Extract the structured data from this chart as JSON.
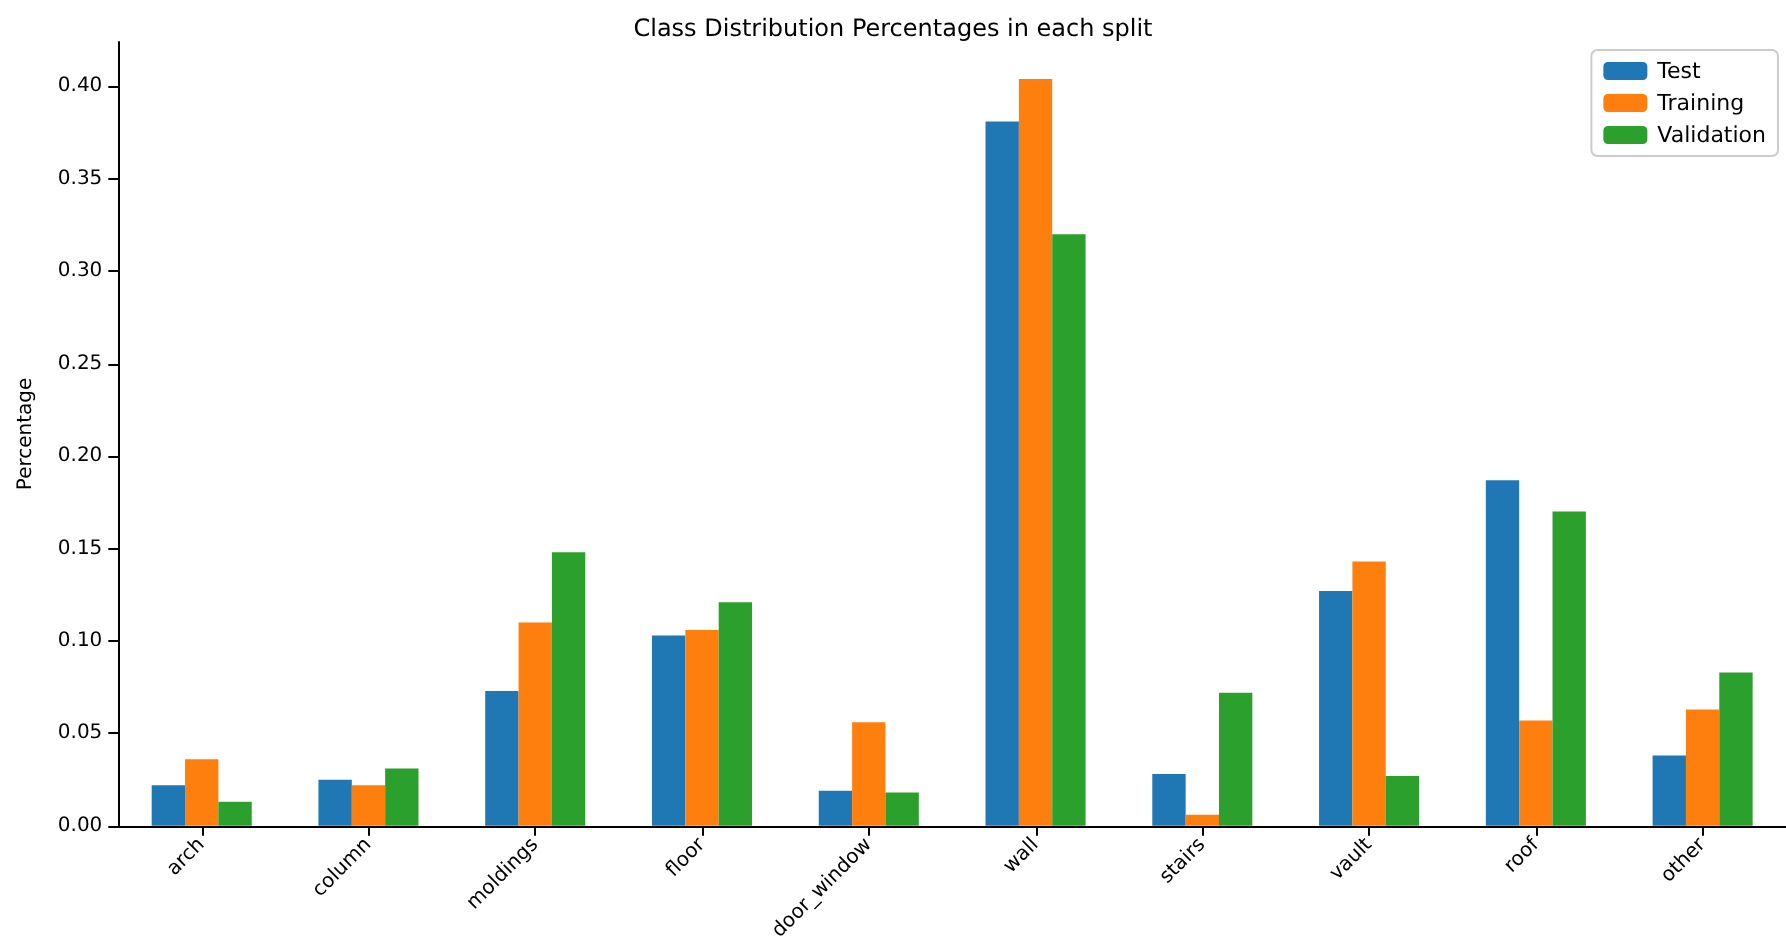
{
  "chart_data": {
    "type": "bar",
    "title": "Class Distribution Percentages in each split",
    "ylabel": "Percentage",
    "categories": [
      "arch",
      "column",
      "moldings",
      "floor",
      "door_window",
      "wall",
      "stairs",
      "vault",
      "roof",
      "other"
    ],
    "series": [
      {
        "name": "Test",
        "color": "#1f77b4",
        "values": [
          0.022,
          0.025,
          0.073,
          0.103,
          0.019,
          0.381,
          0.028,
          0.127,
          0.187,
          0.038
        ]
      },
      {
        "name": "Training",
        "color": "#ff7f0e",
        "values": [
          0.036,
          0.022,
          0.11,
          0.106,
          0.056,
          0.404,
          0.006,
          0.143,
          0.057,
          0.063
        ]
      },
      {
        "name": "Validation",
        "color": "#2ca02c",
        "values": [
          0.013,
          0.031,
          0.148,
          0.121,
          0.018,
          0.32,
          0.072,
          0.027,
          0.17,
          0.083
        ]
      }
    ],
    "ylim": [
      0,
      0.424
    ],
    "yticks": [
      {
        "value": 0,
        "label": "0.00"
      },
      {
        "value": 0.05,
        "label": "0.05"
      },
      {
        "value": 0.1,
        "label": "0.10"
      },
      {
        "value": 0.15,
        "label": "0.15"
      },
      {
        "value": 0.2,
        "label": "0.20"
      },
      {
        "value": 0.25,
        "label": "0.25"
      },
      {
        "value": 0.3,
        "label": "0.30"
      },
      {
        "value": 0.35,
        "label": "0.35"
      },
      {
        "value": 0.4,
        "label": "0.40"
      }
    ],
    "grid": false,
    "legend": "top right"
  }
}
